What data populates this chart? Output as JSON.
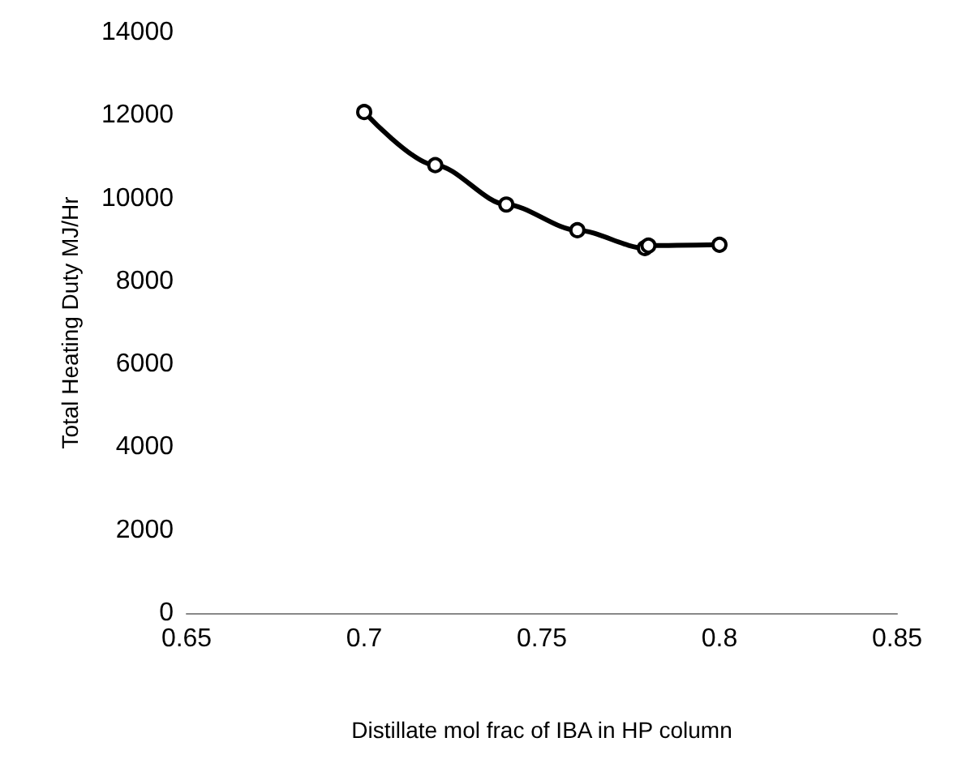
{
  "chart_data": {
    "type": "line",
    "xlabel": "Distillate mol frac of IBA in HP column",
    "ylabel": "Total Heating Duty MJ/Hr",
    "x": [
      0.7,
      0.72,
      0.74,
      0.76,
      0.779,
      0.78,
      0.8
    ],
    "series": [
      {
        "color": "#000000",
        "values": [
          12080,
          10800,
          9850,
          9230,
          8800,
          8860,
          8880
        ]
      }
    ],
    "xlim": [
      0.65,
      0.85
    ],
    "xticks": [
      0.65,
      0.7,
      0.75,
      0.8,
      0.85
    ],
    "ylim": [
      0,
      14000
    ],
    "yticks": [
      0,
      2000,
      4000,
      6000,
      8000,
      10000,
      12000,
      14000
    ],
    "grid": false,
    "marker": "circle",
    "line_style": "solid"
  }
}
